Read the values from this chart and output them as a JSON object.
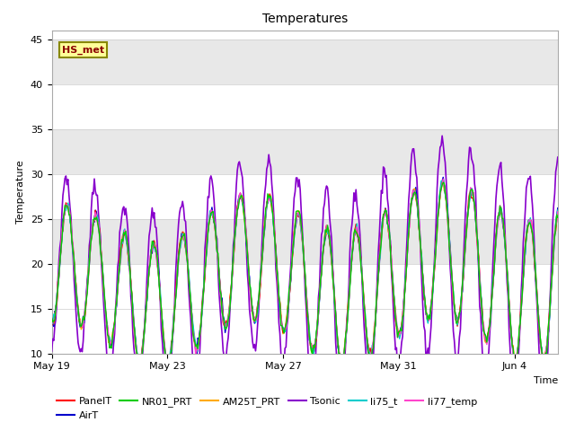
{
  "title": "Temperatures",
  "xlabel": "Time",
  "ylabel": "Temperature",
  "ylim": [
    10,
    46
  ],
  "yticks": [
    10,
    15,
    20,
    25,
    30,
    35,
    40,
    45
  ],
  "xlim": [
    0,
    17.5
  ],
  "xtick_positions": [
    0,
    4,
    8,
    12,
    16
  ],
  "xtick_labels": [
    "May 19",
    "May 23",
    "May 27",
    "May 31",
    "Jun 4"
  ],
  "band_ranges": [
    [
      20,
      25
    ],
    [
      30,
      35
    ],
    [
      40,
      45
    ]
  ],
  "band_color": "#e8e8e8",
  "series": [
    {
      "name": "PanelT",
      "color": "#ff0000",
      "lw": 1.0,
      "zorder": 5
    },
    {
      "name": "AirT",
      "color": "#0000cc",
      "lw": 1.0,
      "zorder": 4
    },
    {
      "name": "NR01_PRT",
      "color": "#00cc00",
      "lw": 1.0,
      "zorder": 6
    },
    {
      "name": "AM25T_PRT",
      "color": "#ffaa00",
      "lw": 1.0,
      "zorder": 4
    },
    {
      "name": "Tsonic",
      "color": "#8800cc",
      "lw": 1.2,
      "zorder": 3
    },
    {
      "name": "li75_t",
      "color": "#00cccc",
      "lw": 1.0,
      "zorder": 5
    },
    {
      "name": "li77_temp",
      "color": "#ff44cc",
      "lw": 1.0,
      "zorder": 5
    }
  ],
  "annotation_text": "HS_met",
  "annotation_fontsize": 8,
  "annotation_bg": "#ffff99",
  "annotation_border": "#888800",
  "title_fontsize": 10,
  "axis_label_fontsize": 8,
  "tick_fontsize": 8,
  "legend_fontsize": 8,
  "background_color": "#ffffff",
  "figsize": [
    6.4,
    4.8
  ],
  "dpi": 100
}
